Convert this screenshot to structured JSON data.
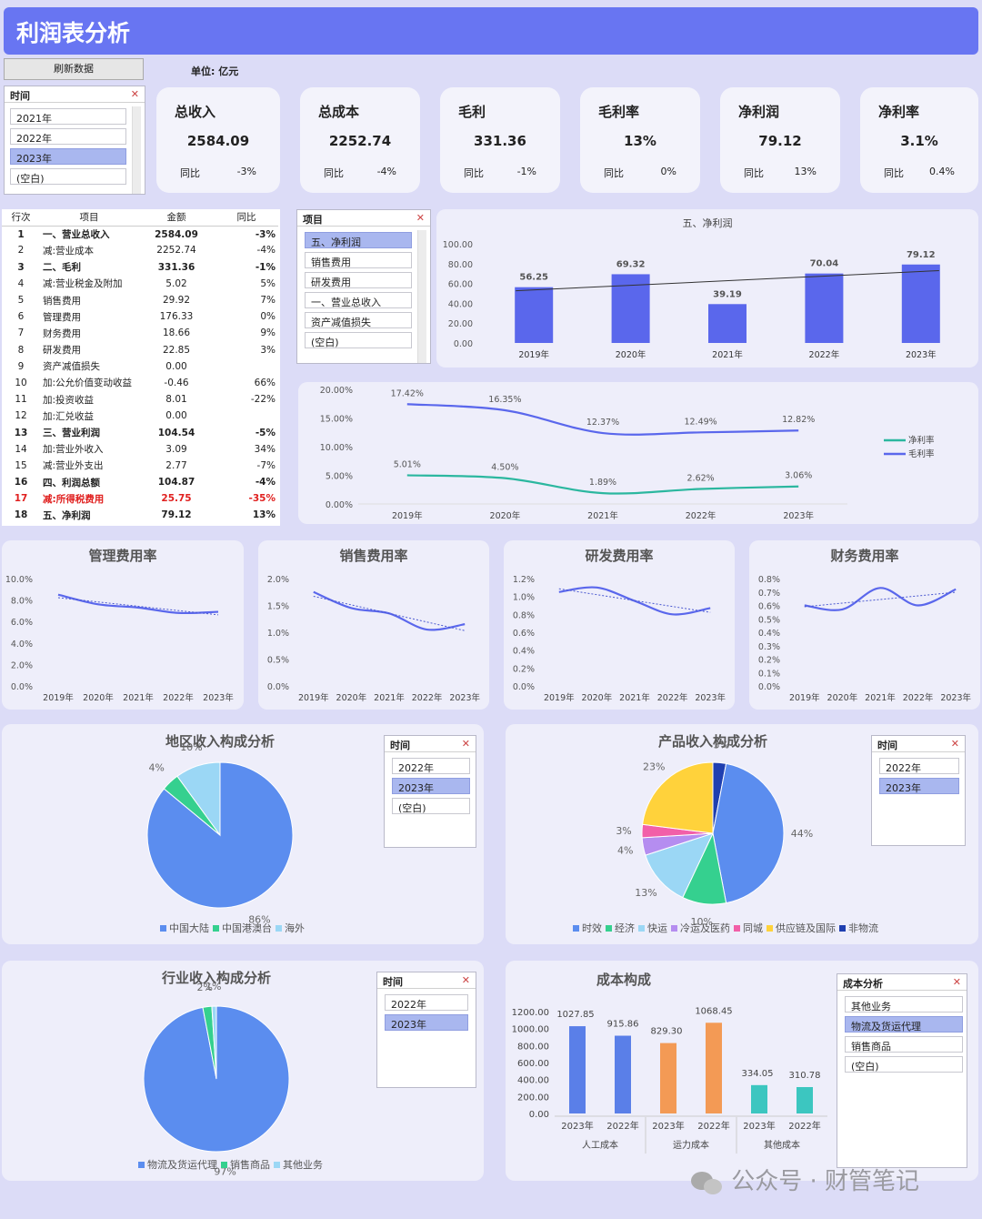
{
  "header": {
    "title": "利润表分析"
  },
  "toolbar": {
    "refresh_label": "刷新数据",
    "unit_label": "单位:",
    "unit_value": "亿元"
  },
  "colors": {
    "header_bg": "#6875f2",
    "bar_blue": "#5a67ec",
    "line_teal": "#2bb79f",
    "orange": "#f39a55",
    "teal": "#3cc6c0",
    "red": "#e0201f"
  },
  "time_slicer": {
    "title": "时间",
    "items": [
      "2021年",
      "2022年",
      "2023年",
      "(空白)"
    ],
    "selected": "2023年"
  },
  "kpis": [
    {
      "title": "总收入",
      "value": "2584.09",
      "yoy_label": "同比",
      "yoy": "-3%"
    },
    {
      "title": "总成本",
      "value": "2252.74",
      "yoy_label": "同比",
      "yoy": "-4%"
    },
    {
      "title": "毛利",
      "value": "331.36",
      "yoy_label": "同比",
      "yoy": "-1%"
    },
    {
      "title": "毛利率",
      "value": "13%",
      "yoy_label": "同比",
      "yoy": "0%"
    },
    {
      "title": "净利润",
      "value": "79.12",
      "yoy_label": "同比",
      "yoy": "13%"
    },
    {
      "title": "净利率",
      "value": "3.1%",
      "yoy_label": "同比",
      "yoy": "0.4%"
    }
  ],
  "pl_table": {
    "headers": [
      "行次",
      "项目",
      "金额",
      "同比"
    ],
    "rows": [
      {
        "no": "1",
        "item": "一、营业总收入",
        "amt": "2584.09",
        "yoy": "-3%",
        "bold": true
      },
      {
        "no": "2",
        "item": "减:营业成本",
        "amt": "2252.74",
        "yoy": "-4%"
      },
      {
        "no": "3",
        "item": "二、毛利",
        "amt": "331.36",
        "yoy": "-1%",
        "bold": true
      },
      {
        "no": "4",
        "item": "减:营业税金及附加",
        "amt": "5.02",
        "yoy": "5%"
      },
      {
        "no": "5",
        "item": "销售费用",
        "amt": "29.92",
        "yoy": "7%"
      },
      {
        "no": "6",
        "item": "管理费用",
        "amt": "176.33",
        "yoy": "0%"
      },
      {
        "no": "7",
        "item": "财务费用",
        "amt": "18.66",
        "yoy": "9%"
      },
      {
        "no": "8",
        "item": "研发费用",
        "amt": "22.85",
        "yoy": "3%"
      },
      {
        "no": "9",
        "item": "资产减值损失",
        "amt": "0.00",
        "yoy": ""
      },
      {
        "no": "10",
        "item": "加:公允价值变动收益",
        "amt": "-0.46",
        "yoy": "66%"
      },
      {
        "no": "11",
        "item": "加:投资收益",
        "amt": "8.01",
        "yoy": "-22%"
      },
      {
        "no": "12",
        "item": "加:汇兑收益",
        "amt": "0.00",
        "yoy": ""
      },
      {
        "no": "13",
        "item": "三、营业利润",
        "amt": "104.54",
        "yoy": "-5%",
        "bold": true
      },
      {
        "no": "14",
        "item": "加:营业外收入",
        "amt": "3.09",
        "yoy": "34%"
      },
      {
        "no": "15",
        "item": "减:营业外支出",
        "amt": "2.77",
        "yoy": "-7%"
      },
      {
        "no": "16",
        "item": "四、利润总额",
        "amt": "104.87",
        "yoy": "-4%",
        "bold": true
      },
      {
        "no": "17",
        "item": "减:所得税费用",
        "amt": "25.75",
        "yoy": "-35%",
        "bold": true,
        "red": true
      },
      {
        "no": "18",
        "item": "五、净利润",
        "amt": "79.12",
        "yoy": "13%",
        "bold": true
      }
    ]
  },
  "item_slicer": {
    "title": "项目",
    "items": [
      "五、净利润",
      "销售费用",
      "研发费用",
      "一、营业总收入",
      "资产减值损失",
      "(空白)"
    ],
    "selected": "五、净利润"
  },
  "chart_data": [
    {
      "id": "net_profit",
      "type": "bar",
      "title": "五、净利润",
      "categories": [
        "2019年",
        "2020年",
        "2021年",
        "2022年",
        "2023年"
      ],
      "values": [
        56.25,
        69.32,
        39.19,
        70.04,
        79.12
      ],
      "ylim": [
        0,
        100
      ],
      "yticks": [
        "100.00",
        "80.00",
        "60.00",
        "40.00",
        "20.00",
        "0.00"
      ],
      "trendline": true
    },
    {
      "id": "margins",
      "type": "line",
      "categories": [
        "2019年",
        "2020年",
        "2021年",
        "2022年",
        "2023年"
      ],
      "ylim": [
        0,
        20
      ],
      "yticks": [
        "20.00%",
        "15.00%",
        "10.00%",
        "5.00%",
        "0.00%"
      ],
      "series": [
        {
          "name": "净利率",
          "values": [
            5.01,
            4.5,
            1.89,
            2.62,
            3.06
          ],
          "labels": [
            "5.01%",
            "4.50%",
            "1.89%",
            "2.62%",
            "3.06%"
          ]
        },
        {
          "name": "毛利率",
          "values": [
            17.42,
            16.35,
            12.37,
            12.49,
            12.82
          ],
          "labels": [
            "17.42%",
            "16.35%",
            "12.37%",
            "12.49%",
            "12.82%"
          ]
        }
      ]
    },
    {
      "id": "mgmt_rate",
      "type": "line",
      "title": "管理费用率",
      "categories": [
        "2019年",
        "2020年",
        "2021年",
        "2022年",
        "2023年"
      ],
      "ylim": [
        0,
        10
      ],
      "yticks": [
        "10.0%",
        "8.0%",
        "6.0%",
        "4.0%",
        "2.0%",
        "0.0%"
      ],
      "values": [
        8.5,
        7.6,
        7.3,
        6.8,
        6.9
      ]
    },
    {
      "id": "sales_rate",
      "type": "line",
      "title": "销售费用率",
      "categories": [
        "2019年",
        "2020年",
        "2021年",
        "2022年",
        "2023年"
      ],
      "ylim": [
        0,
        2
      ],
      "yticks": [
        "2.0%",
        "1.5%",
        "1.0%",
        "0.5%",
        "0.0%"
      ],
      "values": [
        1.75,
        1.45,
        1.35,
        1.05,
        1.15
      ]
    },
    {
      "id": "rd_rate",
      "type": "line",
      "title": "研发费用率",
      "categories": [
        "2019年",
        "2020年",
        "2021年",
        "2022年",
        "2023年"
      ],
      "ylim": [
        0,
        1.2
      ],
      "yticks": [
        "1.2%",
        "1.0%",
        "0.8%",
        "0.6%",
        "0.4%",
        "0.2%",
        "0.0%"
      ],
      "values": [
        1.05,
        1.1,
        0.95,
        0.8,
        0.87
      ]
    },
    {
      "id": "fin_rate",
      "type": "line",
      "title": "财务费用率",
      "categories": [
        "2019年",
        "2020年",
        "2021年",
        "2022年",
        "2023年"
      ],
      "ylim": [
        0,
        0.8
      ],
      "yticks": [
        "0.8%",
        "0.7%",
        "0.6%",
        "0.5%",
        "0.4%",
        "0.3%",
        "0.2%",
        "0.1%",
        "0.0%"
      ],
      "values": [
        0.6,
        0.57,
        0.73,
        0.6,
        0.72
      ]
    },
    {
      "id": "region_pie",
      "type": "pie",
      "title": "地区收入构成分析",
      "slices": [
        {
          "name": "中国大陆",
          "value": 86,
          "label": "86%",
          "color": "#5b8def"
        },
        {
          "name": "中国港澳台",
          "value": 4,
          "label": "4%",
          "color": "#35d08f"
        },
        {
          "name": "海外",
          "value": 10,
          "label": "10%",
          "color": "#9bd7f5"
        }
      ]
    },
    {
      "id": "product_pie",
      "type": "pie",
      "title": "产品收入构成分析",
      "slices": [
        {
          "name": "非物流",
          "value": 3,
          "label": "3%",
          "color": "#1f3fb0"
        },
        {
          "name": "时效",
          "value": 44,
          "label": "44%",
          "color": "#5b8def"
        },
        {
          "name": "经济",
          "value": 10,
          "label": "10%",
          "color": "#35d08f"
        },
        {
          "name": "快运",
          "value": 13,
          "label": "13%",
          "color": "#9bd7f5"
        },
        {
          "name": "冷运及医药",
          "value": 4,
          "label": "4%",
          "color": "#b58df0"
        },
        {
          "name": "同城",
          "value": 3,
          "label": "3%",
          "color": "#f25fa8"
        },
        {
          "name": "供应链及国际",
          "value": 23,
          "label": "23%",
          "color": "#ffd23b"
        }
      ],
      "legend": [
        "时效",
        "经济",
        "快运",
        "冷运及医药",
        "同城",
        "供应链及国际",
        "非物流"
      ]
    },
    {
      "id": "industry_pie",
      "type": "pie",
      "title": "行业收入构成分析",
      "slices": [
        {
          "name": "物流及货运代理",
          "value": 97,
          "label": "97%",
          "color": "#5b8def"
        },
        {
          "name": "销售商品",
          "value": 2,
          "label": "2%",
          "color": "#35d08f"
        },
        {
          "name": "其他业务",
          "value": 1,
          "label": "1%",
          "color": "#9bd7f5"
        }
      ]
    },
    {
      "id": "cost_bar",
      "type": "bar",
      "title": "成本构成",
      "categories": [
        "2023年",
        "2022年",
        "2023年",
        "2022年",
        "2023年",
        "2022年"
      ],
      "groups": [
        "人工成本",
        "运力成本",
        "其他成本"
      ],
      "values": [
        1027.85,
        915.86,
        829.3,
        1068.45,
        334.05,
        310.78
      ],
      "labels": [
        "1027.85",
        "915.86",
        "829.30",
        "1068.45",
        "334.05",
        "310.78"
      ],
      "colors": [
        "#5a7fe8",
        "#5a7fe8",
        "#f39a55",
        "#f39a55",
        "#3cc6c0",
        "#3cc6c0"
      ],
      "ylim": [
        0,
        1200
      ],
      "yticks": [
        "1200.00",
        "1000.00",
        "800.00",
        "600.00",
        "400.00",
        "200.00",
        "0.00"
      ]
    }
  ],
  "region_slicer": {
    "title": "时间",
    "items": [
      "2022年",
      "2023年",
      "(空白)"
    ],
    "selected": "2023年"
  },
  "product_slicer": {
    "title": "时间",
    "items": [
      "2022年",
      "2023年"
    ],
    "selected": "2023年"
  },
  "industry_slicer": {
    "title": "时间",
    "items": [
      "2022年",
      "2023年"
    ],
    "selected": "2023年"
  },
  "cost_slicer": {
    "title": "成本分析",
    "items": [
      "其他业务",
      "物流及货运代理",
      "销售商品",
      "(空白)"
    ],
    "selected": "物流及货运代理"
  },
  "watermark": "公众号 · 财管笔记"
}
